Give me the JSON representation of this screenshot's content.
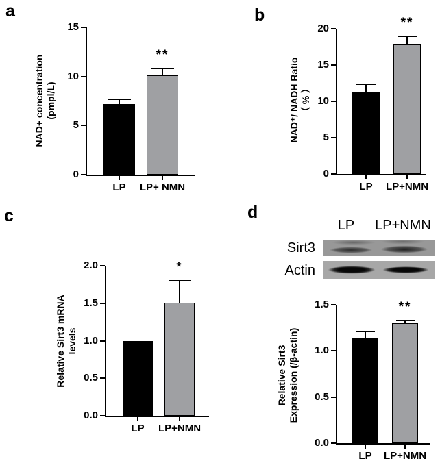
{
  "panels": {
    "a": {
      "letter": "a"
    },
    "b": {
      "letter": "b"
    },
    "c": {
      "letter": "c"
    },
    "d": {
      "letter": "d"
    }
  },
  "western_blot": {
    "col_labels": [
      "LP",
      "LP+NMN"
    ],
    "row_labels": [
      "Sirt3",
      "Actin"
    ]
  },
  "colors": {
    "bar_black": "#000000",
    "bar_gray": "#9fa0a3",
    "axis": "#000000"
  },
  "chart_data": [
    {
      "panel": "a",
      "type": "bar",
      "title": "",
      "ylabel_lines": [
        "NAD+ concentration",
        "(pmpl/L)"
      ],
      "categories": [
        "LP",
        "LP+ NMN"
      ],
      "values": [
        7.2,
        10.1
      ],
      "errors_upper": [
        0.5,
        0.7
      ],
      "significance": {
        "label": "**",
        "bar_index": 1
      },
      "ylim": [
        0,
        15
      ],
      "yticks": [
        "0",
        "5",
        "10",
        "15"
      ],
      "bar_colors": [
        "#000000",
        "#9fa0a3"
      ],
      "grid": false,
      "legend": "none"
    },
    {
      "panel": "b",
      "type": "bar",
      "title": "",
      "ylabel_lines": [
        "NAD⁺/ NADH Ratio",
        "（ % ）"
      ],
      "categories": [
        "LP",
        "LP+NMN"
      ],
      "values": [
        11.3,
        17.9
      ],
      "errors_upper": [
        1.1,
        1.1
      ],
      "significance": {
        "label": "**",
        "bar_index": 1
      },
      "ylim": [
        0,
        20
      ],
      "yticks": [
        "0",
        "5",
        "10",
        "15",
        "20"
      ],
      "bar_colors": [
        "#000000",
        "#9fa0a3"
      ],
      "grid": false,
      "legend": "none"
    },
    {
      "panel": "c",
      "type": "bar",
      "title": "",
      "ylabel_lines": [
        "Relative Sirt3 mRNA",
        "levels"
      ],
      "categories": [
        "LP",
        "LP+NMN"
      ],
      "values": [
        1.0,
        1.51
      ],
      "errors_upper": [
        0,
        0.29
      ],
      "significance": {
        "label": "*",
        "bar_index": 1
      },
      "ylim": [
        0,
        2
      ],
      "yticks": [
        "0.0",
        "0.5",
        "1.0",
        "1.5",
        "2.0"
      ],
      "bar_colors": [
        "#000000",
        "#9fa0a3"
      ],
      "grid": false,
      "legend": "none"
    },
    {
      "panel": "d",
      "type": "bar",
      "title": "",
      "ylabel_lines": [
        "Relative Sirt3",
        "Expression (/β-actin)"
      ],
      "categories": [
        "LP",
        "LP+NMN"
      ],
      "values": [
        1.14,
        1.3
      ],
      "errors_upper": [
        0.07,
        0.03
      ],
      "significance": {
        "label": "**",
        "bar_index": 1
      },
      "ylim": [
        0,
        1.5
      ],
      "yticks": [
        "0.0",
        "0.5",
        "1.0",
        "1.5"
      ],
      "bar_colors": [
        "#000000",
        "#9fa0a3"
      ],
      "grid": false,
      "legend": "none"
    }
  ]
}
